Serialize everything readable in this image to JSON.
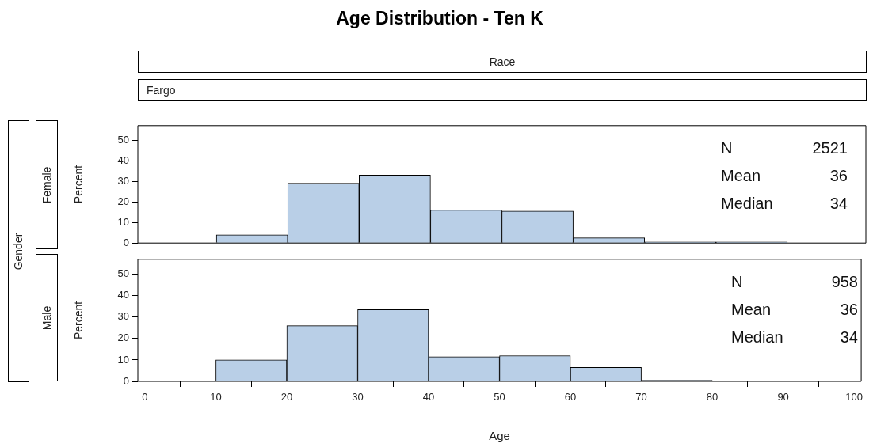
{
  "chart_data": [
    {
      "type": "histogram",
      "title": "Age Distribution - Ten K",
      "ylabel": "Percent",
      "bins": [
        10,
        20,
        30,
        40,
        50,
        60,
        70,
        80,
        90
      ],
      "values": [
        4,
        29,
        33,
        16,
        15.5,
        2.5,
        0.5,
        0.5
      ],
      "color": "#b9cfe7",
      "xlim": [
        -1,
        101
      ],
      "xticks": [
        0,
        10,
        20,
        30,
        40,
        50,
        60,
        70,
        80,
        90,
        100
      ],
      "ylim": [
        0,
        57
      ],
      "yticks": [
        0,
        10,
        20,
        30,
        40,
        50
      ],
      "tick_labels": "y",
      "grid": false,
      "legend": false,
      "annotations": [
        "Race",
        "Fargo",
        "Gender",
        "Female",
        "N",
        "2521",
        "Mean",
        "36",
        "Median",
        "34"
      ]
    },
    {
      "type": "histogram",
      "xlabel": "Age",
      "ylabel": "Percent",
      "bins": [
        10,
        20,
        30,
        40,
        50,
        60,
        70,
        80
      ],
      "values": [
        10,
        26,
        33.5,
        11.5,
        12,
        6.5,
        0.5
      ],
      "color": "#b9cfe7",
      "xlim": [
        -1,
        101
      ],
      "xticks": [
        0,
        10,
        20,
        30,
        40,
        50,
        60,
        70,
        80,
        90,
        100
      ],
      "ylim": [
        0,
        57
      ],
      "yticks": [
        0,
        10,
        20,
        30,
        40,
        50
      ],
      "grid": false,
      "legend": false,
      "annotations": [
        "Male",
        "N",
        "958",
        "Mean",
        "36",
        "Median",
        "34"
      ]
    }
  ]
}
